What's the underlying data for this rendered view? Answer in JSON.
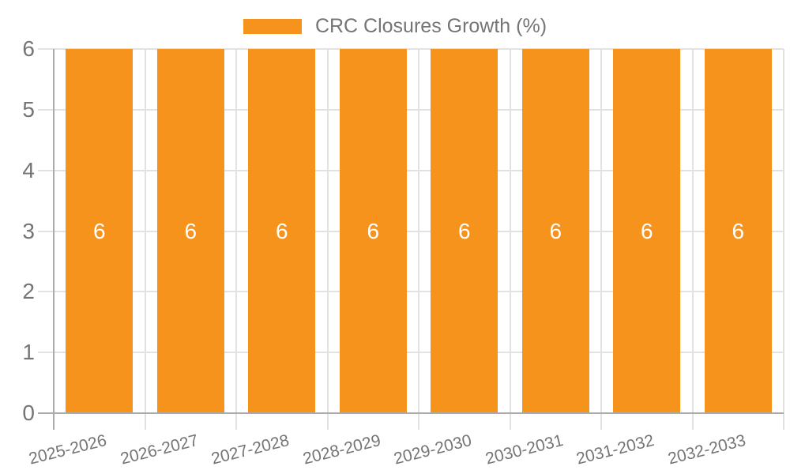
{
  "legend": {
    "label": "CRC Closures Growth (%)"
  },
  "chart_data": {
    "type": "bar",
    "title": "",
    "legend_entries": [
      "CRC Closures Growth (%)"
    ],
    "legend_position": "top",
    "categories": [
      "2025-2026",
      "2026-2027",
      "2027-2028",
      "2028-2029",
      "2029-2030",
      "2030-2031",
      "2031-2032",
      "2032-2033"
    ],
    "series": [
      {
        "name": "CRC Closures Growth (%)",
        "values": [
          6,
          6,
          6,
          6,
          6,
          6,
          6,
          6
        ],
        "bar_value_labels": [
          "6",
          "6",
          "6",
          "6",
          "6",
          "6",
          "6",
          "6"
        ]
      }
    ],
    "xlabel": "",
    "ylabel": "",
    "ylim": [
      0,
      6
    ],
    "yticks": [
      0,
      1,
      2,
      3,
      4,
      5,
      6
    ],
    "grid": true
  },
  "colors": {
    "bar": "#F6931D",
    "axis_line": "#ABABAB",
    "grid_line": "#E2E2E2",
    "axis_text": "#757575",
    "bar_label": "#FFFFFF",
    "background": "#FFFFFF"
  }
}
